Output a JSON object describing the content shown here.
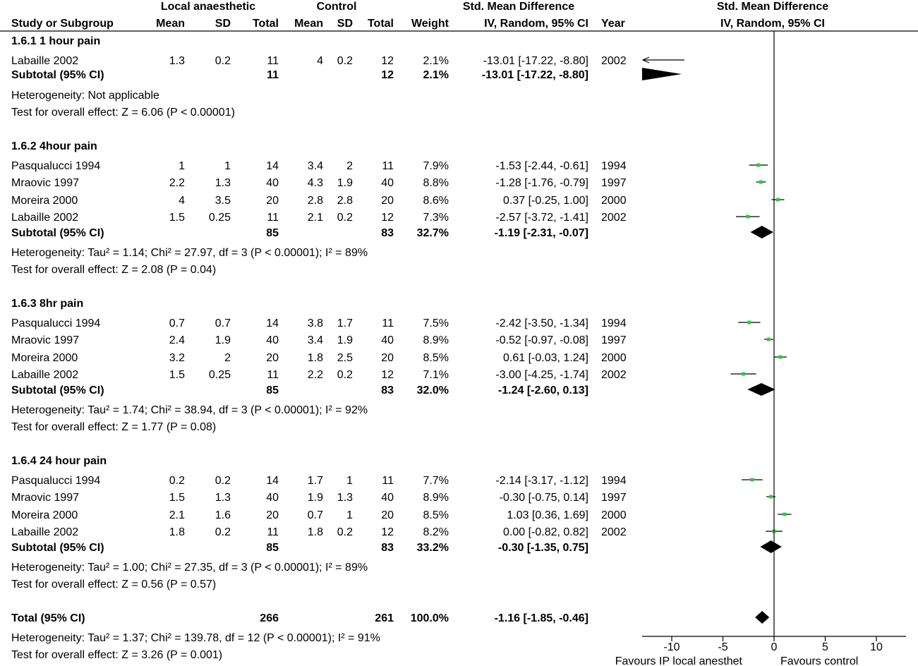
{
  "chart_data": {
    "type": "forest",
    "headers": {
      "group_local": "Local anaesthetic",
      "group_control": "Control",
      "smd_left": "Std. Mean Difference",
      "smd_right": "Std. Mean Difference",
      "study": "Study or Subgroup",
      "mean1": "Mean",
      "sd1": "SD",
      "total1": "Total",
      "mean2": "Mean",
      "sd2": "SD",
      "total2": "Total",
      "weight": "Weight",
      "method_left": "IV, Random, 95% CI",
      "year": "Year",
      "method_right": "IV, Random, 95% CI"
    },
    "subgroups": [
      {
        "title": "1.6.1 1 hour pain",
        "studies": [
          {
            "name": "Labaille 2002",
            "m1": "1.3",
            "sd1": "0.2",
            "n1": "11",
            "m2": "4",
            "sd2": "0.2",
            "n2": "12",
            "weight": "2.1%",
            "ci": "-13.01 [-17.22, -8.80]",
            "year": "2002",
            "est": -13.01,
            "lo": -17.22,
            "hi": -8.8
          }
        ],
        "subtotal": {
          "label": "Subtotal (95% CI)",
          "n1": "11",
          "n2": "12",
          "weight": "2.1%",
          "ci": "-13.01 [-17.22, -8.80]",
          "est": -13.01,
          "lo": -17.22,
          "hi": -8.8
        },
        "heterogeneity": "Heterogeneity: Not applicable",
        "overall": "Test for overall effect: Z = 6.06 (P < 0.00001)"
      },
      {
        "title": "1.6.2 4hour pain",
        "studies": [
          {
            "name": "Pasqualucci 1994",
            "m1": "1",
            "sd1": "1",
            "n1": "14",
            "m2": "3.4",
            "sd2": "2",
            "n2": "11",
            "weight": "7.9%",
            "ci": "-1.53 [-2.44, -0.61]",
            "year": "1994",
            "est": -1.53,
            "lo": -2.44,
            "hi": -0.61
          },
          {
            "name": "Mraovic 1997",
            "m1": "2.2",
            "sd1": "1.3",
            "n1": "40",
            "m2": "4.3",
            "sd2": "1.9",
            "n2": "40",
            "weight": "8.8%",
            "ci": "-1.28 [-1.76, -0.79]",
            "year": "1997",
            "est": -1.28,
            "lo": -1.76,
            "hi": -0.79
          },
          {
            "name": "Moreira 2000",
            "m1": "4",
            "sd1": "3.5",
            "n1": "20",
            "m2": "2.8",
            "sd2": "2.8",
            "n2": "20",
            "weight": "8.6%",
            "ci": "0.37 [-0.25, 1.00]",
            "year": "2000",
            "est": 0.37,
            "lo": -0.25,
            "hi": 1.0
          },
          {
            "name": "Labaille 2002",
            "m1": "1.5",
            "sd1": "0.25",
            "n1": "11",
            "m2": "2.1",
            "sd2": "0.2",
            "n2": "12",
            "weight": "7.3%",
            "ci": "-2.57 [-3.72, -1.41]",
            "year": "2002",
            "est": -2.57,
            "lo": -3.72,
            "hi": -1.41
          }
        ],
        "subtotal": {
          "label": "Subtotal (95% CI)",
          "n1": "85",
          "n2": "83",
          "weight": "32.7%",
          "ci": "-1.19 [-2.31, -0.07]",
          "est": -1.19,
          "lo": -2.31,
          "hi": -0.07
        },
        "heterogeneity": "Heterogeneity: Tau² = 1.14; Chi² = 27.97, df = 3 (P < 0.00001); I² = 89%",
        "overall": "Test for overall effect: Z = 2.08 (P = 0.04)"
      },
      {
        "title": "1.6.3 8hr pain",
        "studies": [
          {
            "name": "Pasqualucci 1994",
            "m1": "0.7",
            "sd1": "0.7",
            "n1": "14",
            "m2": "3.8",
            "sd2": "1.7",
            "n2": "11",
            "weight": "7.5%",
            "ci": "-2.42 [-3.50, -1.34]",
            "year": "1994",
            "est": -2.42,
            "lo": -3.5,
            "hi": -1.34
          },
          {
            "name": "Mraovic 1997",
            "m1": "2.4",
            "sd1": "1.9",
            "n1": "40",
            "m2": "3.4",
            "sd2": "1.9",
            "n2": "40",
            "weight": "8.9%",
            "ci": "-0.52 [-0.97, -0.08]",
            "year": "1997",
            "est": -0.52,
            "lo": -0.97,
            "hi": -0.08
          },
          {
            "name": "Moreira 2000",
            "m1": "3.2",
            "sd1": "2",
            "n1": "20",
            "m2": "1.8",
            "sd2": "2.5",
            "n2": "20",
            "weight": "8.5%",
            "ci": "0.61 [-0.03, 1.24]",
            "year": "2000",
            "est": 0.61,
            "lo": -0.03,
            "hi": 1.24
          },
          {
            "name": "Labaille 2002",
            "m1": "1.5",
            "sd1": "0.25",
            "n1": "11",
            "m2": "2.2",
            "sd2": "0.2",
            "n2": "12",
            "weight": "7.1%",
            "ci": "-3.00 [-4.25, -1.74]",
            "year": "2002",
            "est": -3.0,
            "lo": -4.25,
            "hi": -1.74
          }
        ],
        "subtotal": {
          "label": "Subtotal (95% CI)",
          "n1": "85",
          "n2": "83",
          "weight": "32.0%",
          "ci": "-1.24 [-2.60, 0.13]",
          "est": -1.24,
          "lo": -2.6,
          "hi": 0.13
        },
        "heterogeneity": "Heterogeneity: Tau² = 1.74; Chi² = 38.94, df = 3 (P < 0.00001); I² = 92%",
        "overall": "Test for overall effect: Z = 1.77 (P = 0.08)"
      },
      {
        "title": "1.6.4 24 hour pain",
        "studies": [
          {
            "name": "Pasqualucci 1994",
            "m1": "0.2",
            "sd1": "0.2",
            "n1": "14",
            "m2": "1.7",
            "sd2": "1",
            "n2": "11",
            "weight": "7.7%",
            "ci": "-2.14 [-3.17, -1.12]",
            "year": "1994",
            "est": -2.14,
            "lo": -3.17,
            "hi": -1.12
          },
          {
            "name": "Mraovic 1997",
            "m1": "1.5",
            "sd1": "1.3",
            "n1": "40",
            "m2": "1.9",
            "sd2": "1.3",
            "n2": "40",
            "weight": "8.9%",
            "ci": "-0.30 [-0.75, 0.14]",
            "year": "1997",
            "est": -0.3,
            "lo": -0.75,
            "hi": 0.14
          },
          {
            "name": "Moreira 2000",
            "m1": "2.1",
            "sd1": "1.6",
            "n1": "20",
            "m2": "0.7",
            "sd2": "1",
            "n2": "20",
            "weight": "8.5%",
            "ci": "1.03 [0.36, 1.69]",
            "year": "2000",
            "est": 1.03,
            "lo": 0.36,
            "hi": 1.69
          },
          {
            "name": "Labaille 2002",
            "m1": "1.8",
            "sd1": "0.2",
            "n1": "11",
            "m2": "1.8",
            "sd2": "0.2",
            "n2": "12",
            "weight": "8.2%",
            "ci": "0.00 [-0.82, 0.82]",
            "year": "2002",
            "est": 0.0,
            "lo": -0.82,
            "hi": 0.82
          }
        ],
        "subtotal": {
          "label": "Subtotal (95% CI)",
          "n1": "85",
          "n2": "83",
          "weight": "33.2%",
          "ci": "-0.30 [-1.35, 0.75]",
          "est": -0.3,
          "lo": -1.35,
          "hi": 0.75
        },
        "heterogeneity": "Heterogeneity: Tau² = 1.00; Chi² = 27.35, df = 3 (P < 0.00001); I² = 89%",
        "overall": "Test for overall effect: Z = 0.56 (P = 0.57)"
      }
    ],
    "total": {
      "label": "Total (95% CI)",
      "n1": "266",
      "n2": "261",
      "weight": "100.0%",
      "ci": "-1.16 [-1.85, -0.46]",
      "est": -1.16,
      "lo": -1.85,
      "hi": -0.46
    },
    "total_heterogeneity": "Heterogeneity: Tau² = 1.37; Chi² = 139.78, df = 12 (P < 0.00001); I² = 91%",
    "total_overall": "Test for overall effect: Z = 3.26 (P = 0.001)",
    "xlim": [
      -10,
      10
    ],
    "xticks": [
      -10,
      -5,
      0,
      5,
      10
    ],
    "tick_labels": [
      "-10",
      "-5",
      "0",
      "5",
      "10"
    ],
    "favours_left": "Favours IP local anesthet",
    "favours_right": "Favours control",
    "colors": {
      "point": "#2ecc40",
      "line": "#000000",
      "diamond": "#000000"
    }
  }
}
